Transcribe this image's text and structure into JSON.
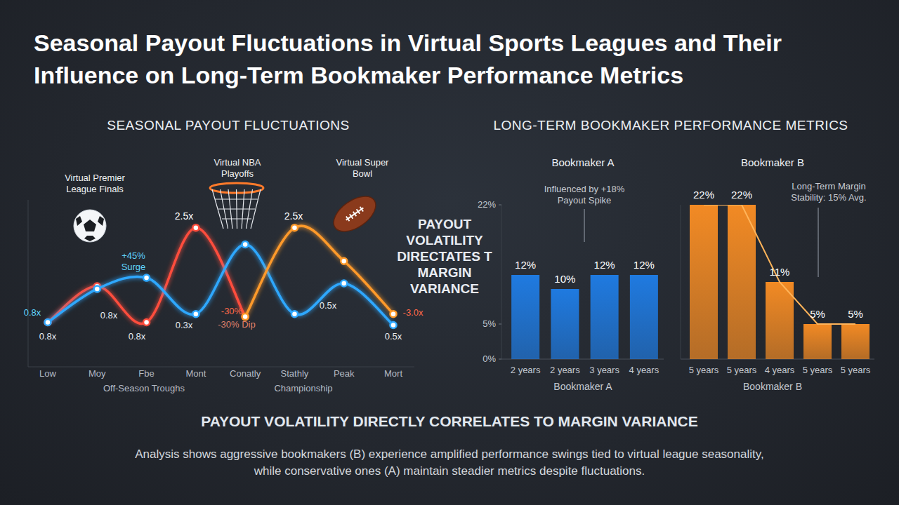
{
  "title": "Seasonal Payout Fluctuations in Virtual Sports Leagues and Their Influence on Long-Term Bookmaker Performance Metrics",
  "right_heading": "LONG-TERM BOOKMAKER PERFORMANCE METRICS",
  "center_text": "PAYOUT VOLATILITY DIRECTATES T MARGIN VARIANCE",
  "footer_heading": "PAYOUT VOLATILITY DIRECTLY CORRELATES TO MARGIN VARIANCE",
  "footer_text": "Analysis shows aggressive bookmakers (B) experience amplified performance swings tied to virtual league seasonality, while conservative ones (A) maintain steadier metrics despite fluctuations.",
  "chart_data": [
    {
      "type": "line",
      "title": "SEASONAL PAYOUT FLUCTUATIONS",
      "categories": [
        "Low",
        "Moy",
        "Fbe",
        "Mont",
        "Conatly",
        "Stathly",
        "Peak",
        "Mort"
      ],
      "series": [
        {
          "color": "#ff4d3d",
          "marker": "circle",
          "values": [
            0.8,
            1.45,
            0.8,
            2.5,
            0.9,
            null,
            null,
            null
          ]
        },
        {
          "color": "#2fa8ff",
          "marker": "circle",
          "values": [
            0.8,
            1.4,
            1.6,
            0.95,
            2.2,
            0.95,
            1.5,
            0.75
          ]
        },
        {
          "color": "#ff9a2a",
          "marker": "circle",
          "values": [
            null,
            null,
            null,
            null,
            0.9,
            2.5,
            1.9,
            0.95
          ]
        }
      ],
      "ylim": [
        0,
        3
      ],
      "tick_labels": "x",
      "annotations": [
        "Virtual Premier League Finals",
        "Virtual NBA Playoffs",
        "Virtual Super Bowl",
        "+45% Surge",
        "2.5x",
        "2.5x",
        "0.8x",
        "0.8x",
        "0.8x",
        "0.8x",
        "0.3x",
        "-30%",
        "-30% Dip",
        "0.5x",
        "0.5x",
        "-3.0x",
        "Off-Season Troughs",
        "Championship"
      ]
    },
    {
      "type": "bar",
      "title": "Bookmaker A",
      "x_label": "Bookmaker A",
      "categories": [
        "2 years",
        "2 years",
        "3 years",
        "4 years"
      ],
      "values": [
        12,
        10,
        12,
        12
      ],
      "value_labels": [
        "12%",
        "10%",
        "12%",
        "12%"
      ],
      "data_labels": true,
      "color": "#1f7ae0",
      "ylim": [
        0,
        22
      ],
      "yticks": [
        {
          "value": 0,
          "label": "0%"
        },
        {
          "value": 5,
          "label": "5%"
        },
        {
          "value": 22,
          "label": "22%"
        }
      ],
      "annotations": [
        "Influenced by +18% Payout Spike"
      ]
    },
    {
      "type": "bar",
      "title": "Bookmaker B",
      "x_label": "Bookmaker B",
      "categories": [
        "5 years",
        "5 years",
        "4 years",
        "5 years",
        "5 years"
      ],
      "values": [
        22,
        22,
        11,
        5,
        5
      ],
      "value_labels": [
        "22%",
        "22%",
        "11%",
        "5%",
        "5%"
      ],
      "data_labels": true,
      "color": "#f28a24",
      "ylim": [
        0,
        22
      ],
      "tick_labels": "x",
      "line_style": "solid",
      "annotations": [
        "Long-Term Margin Stability: 15% Avg."
      ]
    }
  ]
}
